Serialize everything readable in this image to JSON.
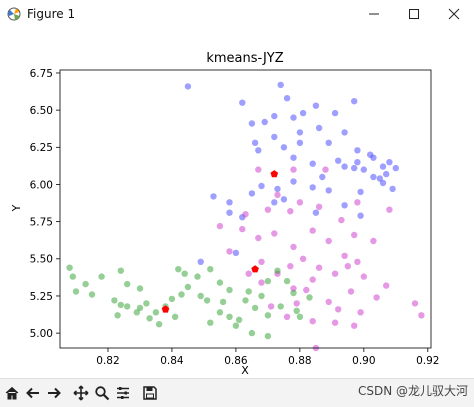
{
  "window": {
    "title": "Figure 1",
    "controls": [
      "minimize-icon",
      "maximize-icon",
      "close-icon"
    ]
  },
  "toolbar": {
    "buttons": [
      "home-icon",
      "back-arrow-icon",
      "forward-arrow-icon",
      "pan-icon",
      "zoom-icon",
      "configure-subplots-icon",
      "save-icon"
    ]
  },
  "watermark": "CSDN @龙儿驭大河",
  "chart_data": {
    "type": "scatter",
    "title": "kmeans-JYZ",
    "xlabel": "X",
    "ylabel": "Y",
    "xlim": [
      0.805,
      0.921
    ],
    "ylim": [
      4.9,
      6.77
    ],
    "xticks": [
      0.82,
      0.84,
      0.86,
      0.88,
      0.9,
      0.92
    ],
    "xtick_labels": [
      "0.82",
      "0.84",
      "0.86",
      "0.88",
      "0.90",
      "0.92"
    ],
    "yticks": [
      5.0,
      5.25,
      5.5,
      5.75,
      6.0,
      6.25,
      6.5,
      6.75
    ],
    "ytick_labels": [
      "5.00",
      "5.25",
      "5.50",
      "5.75",
      "6.00",
      "6.25",
      "6.50",
      "6.75"
    ],
    "grid": false,
    "series": [
      {
        "color": "#4040ff",
        "points": [
          [
            0.845,
            6.66
          ],
          [
            0.874,
            6.67
          ],
          [
            0.876,
            6.58
          ],
          [
            0.862,
            6.55
          ],
          [
            0.897,
            6.56
          ],
          [
            0.885,
            6.53
          ],
          [
            0.872,
            6.46
          ],
          [
            0.881,
            6.48
          ],
          [
            0.891,
            6.48
          ],
          [
            0.878,
            6.45
          ],
          [
            0.869,
            6.42
          ],
          [
            0.886,
            6.38
          ],
          [
            0.894,
            6.35
          ],
          [
            0.872,
            6.32
          ],
          [
            0.88,
            6.28
          ],
          [
            0.889,
            6.28
          ],
          [
            0.866,
            6.28
          ],
          [
            0.898,
            6.23
          ],
          [
            0.875,
            6.25
          ],
          [
            0.867,
            6.23
          ],
          [
            0.902,
            6.2
          ],
          [
            0.892,
            6.16
          ],
          [
            0.884,
            6.14
          ],
          [
            0.906,
            6.12
          ],
          [
            0.878,
            6.18
          ],
          [
            0.894,
            6.12
          ],
          [
            0.9,
            6.1
          ],
          [
            0.887,
            6.05
          ],
          [
            0.903,
            6.05
          ],
          [
            0.878,
            6.02
          ],
          [
            0.906,
            6.01
          ],
          [
            0.899,
            5.95
          ],
          [
            0.889,
            5.96
          ],
          [
            0.909,
            5.97
          ],
          [
            0.868,
            5.99
          ],
          [
            0.865,
            5.94
          ],
          [
            0.853,
            5.92
          ],
          [
            0.884,
            5.98
          ],
          [
            0.873,
            5.97
          ],
          [
            0.91,
            6.11
          ],
          [
            0.908,
            6.15
          ],
          [
            0.858,
            5.88
          ],
          [
            0.858,
            5.81
          ],
          [
            0.872,
            5.88
          ],
          [
            0.875,
            5.9
          ],
          [
            0.899,
            5.79
          ],
          [
            0.885,
            5.81
          ],
          [
            0.862,
            5.78
          ],
          [
            0.894,
            5.86
          ],
          [
            0.905,
            6.04
          ],
          [
            0.898,
            6.15
          ],
          [
            0.849,
            5.48
          ],
          [
            0.86,
            5.54
          ],
          [
            0.907,
            6.07
          ],
          [
            0.897,
            6.11
          ],
          [
            0.903,
            6.18
          ],
          [
            0.88,
            6.35
          ],
          [
            0.865,
            6.41
          ]
        ]
      },
      {
        "color": "#cc33cc",
        "points": [
          [
            0.867,
            6.1
          ],
          [
            0.878,
            6.1
          ],
          [
            0.888,
            6.1
          ],
          [
            0.873,
            5.93
          ],
          [
            0.88,
            5.88
          ],
          [
            0.898,
            5.88
          ],
          [
            0.886,
            5.85
          ],
          [
            0.87,
            5.83
          ],
          [
            0.877,
            5.82
          ],
          [
            0.863,
            5.8
          ],
          [
            0.908,
            5.83
          ],
          [
            0.893,
            5.76
          ],
          [
            0.855,
            5.72
          ],
          [
            0.862,
            5.7
          ],
          [
            0.872,
            5.67
          ],
          [
            0.884,
            5.69
          ],
          [
            0.897,
            5.66
          ],
          [
            0.903,
            5.62
          ],
          [
            0.889,
            5.62
          ],
          [
            0.867,
            5.64
          ],
          [
            0.878,
            5.58
          ],
          [
            0.858,
            5.55
          ],
          [
            0.894,
            5.52
          ],
          [
            0.881,
            5.5
          ],
          [
            0.868,
            5.48
          ],
          [
            0.898,
            5.48
          ],
          [
            0.886,
            5.44
          ],
          [
            0.877,
            5.45
          ],
          [
            0.873,
            5.4
          ],
          [
            0.891,
            5.4
          ],
          [
            0.9,
            5.38
          ],
          [
            0.884,
            5.36
          ],
          [
            0.868,
            5.34
          ],
          [
            0.878,
            5.3
          ],
          [
            0.907,
            5.32
          ],
          [
            0.896,
            5.28
          ],
          [
            0.904,
            5.24
          ],
          [
            0.889,
            5.21
          ],
          [
            0.879,
            5.2
          ],
          [
            0.871,
            5.18
          ],
          [
            0.892,
            5.16
          ],
          [
            0.899,
            5.14
          ],
          [
            0.876,
            5.11
          ],
          [
            0.884,
            5.08
          ],
          [
            0.891,
            5.07
          ],
          [
            0.897,
            5.05
          ],
          [
            0.916,
            5.2
          ],
          [
            0.918,
            5.12
          ],
          [
            0.885,
            4.9
          ],
          [
            0.864,
            5.4
          ],
          [
            0.882,
            5.29
          ],
          [
            0.895,
            5.45
          ]
        ]
      },
      {
        "color": "#2ca02c",
        "points": [
          [
            0.808,
            5.44
          ],
          [
            0.809,
            5.38
          ],
          [
            0.813,
            5.33
          ],
          [
            0.81,
            5.28
          ],
          [
            0.818,
            5.38
          ],
          [
            0.824,
            5.42
          ],
          [
            0.826,
            5.33
          ],
          [
            0.822,
            5.22
          ],
          [
            0.824,
            5.19
          ],
          [
            0.823,
            5.12
          ],
          [
            0.826,
            5.18
          ],
          [
            0.83,
            5.17
          ],
          [
            0.832,
            5.2
          ],
          [
            0.835,
            5.14
          ],
          [
            0.829,
            5.14
          ],
          [
            0.833,
            5.1
          ],
          [
            0.838,
            5.18
          ],
          [
            0.836,
            5.06
          ],
          [
            0.841,
            5.11
          ],
          [
            0.84,
            5.23
          ],
          [
            0.843,
            5.26
          ],
          [
            0.845,
            5.31
          ],
          [
            0.848,
            5.38
          ],
          [
            0.852,
            5.43
          ],
          [
            0.844,
            5.4
          ],
          [
            0.849,
            5.25
          ],
          [
            0.855,
            5.34
          ],
          [
            0.858,
            5.29
          ],
          [
            0.851,
            5.22
          ],
          [
            0.855,
            5.14
          ],
          [
            0.858,
            5.11
          ],
          [
            0.861,
            5.09
          ],
          [
            0.863,
            5.22
          ],
          [
            0.866,
            5.17
          ],
          [
            0.868,
            5.25
          ],
          [
            0.87,
            5.35
          ],
          [
            0.873,
            5.42
          ],
          [
            0.876,
            5.35
          ],
          [
            0.878,
            5.27
          ],
          [
            0.874,
            5.18
          ],
          [
            0.879,
            5.15
          ],
          [
            0.88,
            5.11
          ],
          [
            0.883,
            5.24
          ],
          [
            0.87,
            5.12
          ],
          [
            0.86,
            5.05
          ],
          [
            0.865,
            5.0
          ],
          [
            0.87,
            4.98
          ],
          [
            0.852,
            5.07
          ],
          [
            0.842,
            5.43
          ],
          [
            0.83,
            5.3
          ],
          [
            0.815,
            5.26
          ],
          [
            0.856,
            5.21
          ],
          [
            0.864,
            5.28
          ]
        ]
      }
    ],
    "centroids": [
      {
        "color": "#ff0000",
        "x": 0.872,
        "y": 6.07
      },
      {
        "color": "#ff0000",
        "x": 0.866,
        "y": 5.43
      },
      {
        "color": "#ff0000",
        "x": 0.838,
        "y": 5.16
      }
    ]
  }
}
